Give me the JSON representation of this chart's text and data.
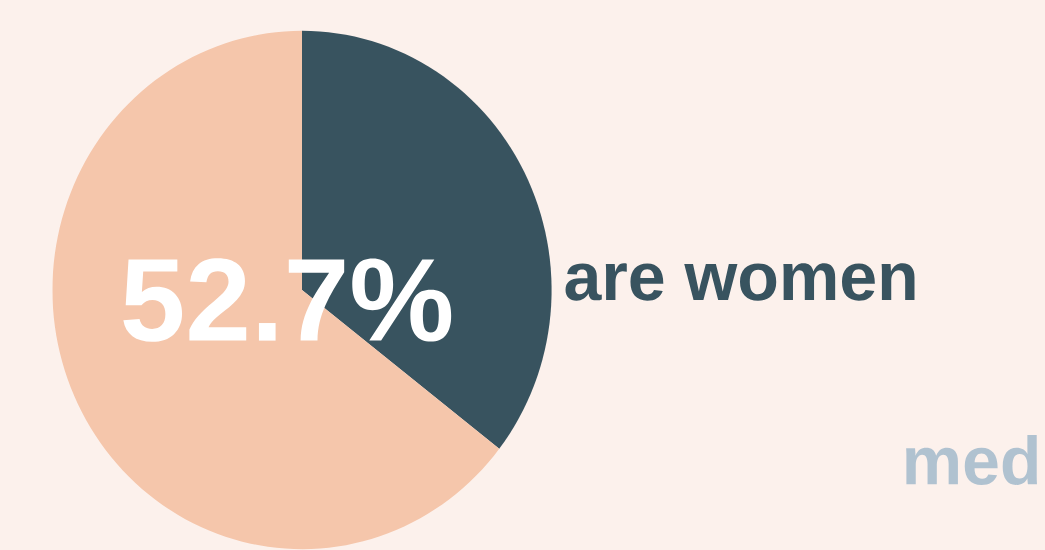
{
  "chart_data": {
    "type": "pie",
    "title": "52.7%",
    "subtitle": "are women",
    "categories": [
      null,
      null
    ],
    "values": [
      35.5,
      64.5
    ],
    "colors": [
      "#38535f",
      "#f5c6ab"
    ],
    "annotations": [
      "med"
    ]
  }
}
